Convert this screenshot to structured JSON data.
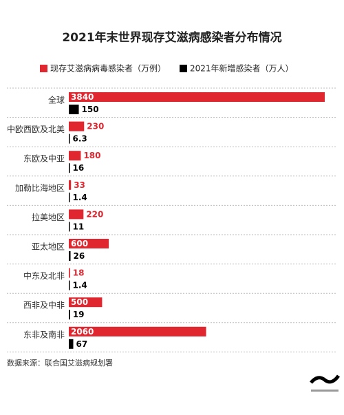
{
  "chart_data": {
    "type": "bar",
    "orientation": "horizontal",
    "title": "2021年末世界现存艾滋病感染者分布情况",
    "categories": [
      "全球",
      "中欧西欧及北美",
      "东欧及中亚",
      "加勒比海地区",
      "拉美地区",
      "亚太地区",
      "中东及北非",
      "西非及中非",
      "东非及南非"
    ],
    "series": [
      {
        "name": "现存艾滋病病毒感染者（万例）",
        "color": "#e0262f",
        "values": [
          3840,
          230,
          180,
          33,
          220,
          600,
          18,
          500,
          2060
        ]
      },
      {
        "name": "2021年新增感染者（万人）",
        "color": "#000000",
        "values": [
          150,
          6.3,
          16,
          1.4,
          11,
          26,
          1.4,
          19,
          67
        ]
      }
    ],
    "source": "数据来源：联合国艾滋病规划署"
  }
}
